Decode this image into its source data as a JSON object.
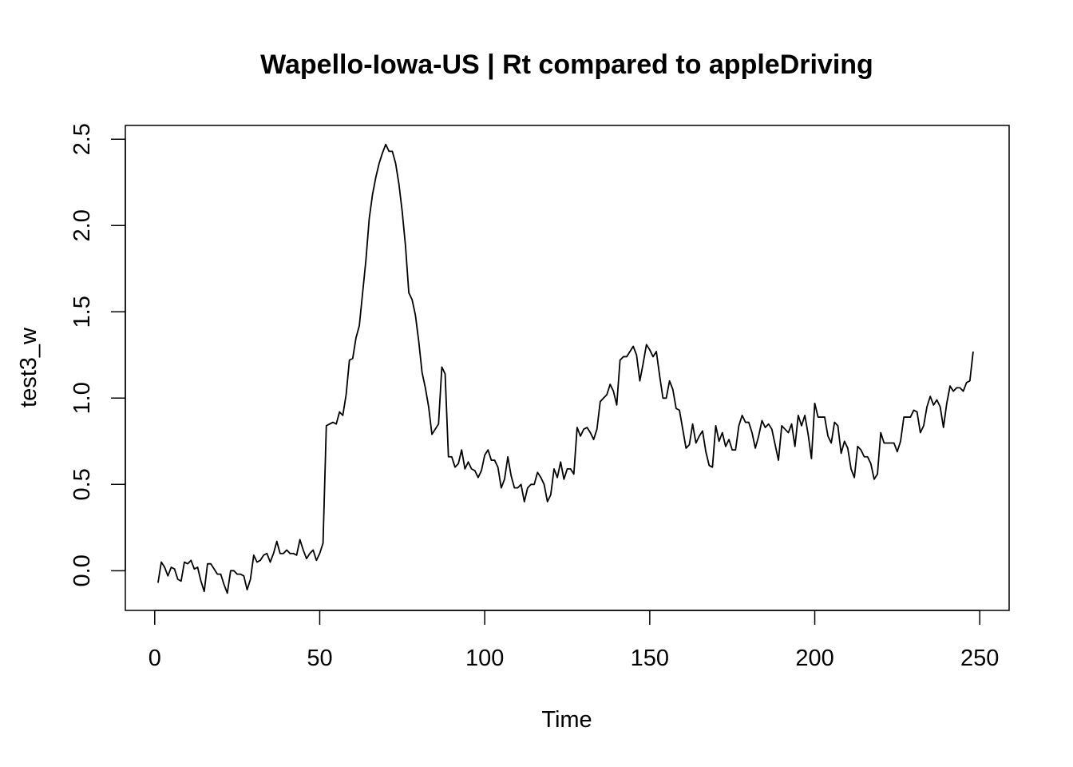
{
  "chart_data": {
    "type": "line",
    "title": "Wapello-Iowa-US | Rt compared to appleDriving",
    "xlabel": "Time",
    "ylabel": "test3_w",
    "xlim": [
      -8.9,
      258.9
    ],
    "ylim": [
      -0.23,
      2.58
    ],
    "xticks": [
      0,
      50,
      100,
      150,
      200,
      250
    ],
    "xtick_labels": [
      "0",
      "50",
      "100",
      "150",
      "200",
      "250"
    ],
    "yticks": [
      0,
      0.5,
      1,
      1.5,
      2,
      2.5
    ],
    "ytick_labels": [
      "0.0",
      "0.5",
      "1.0",
      "1.5",
      "2.0",
      "2.5"
    ],
    "grid": false,
    "legend": "none",
    "line_color": "#000000",
    "series": [
      {
        "x_start": 1,
        "values": [
          -0.07,
          0.05,
          0.02,
          -0.03,
          0.02,
          0.01,
          -0.05,
          -0.06,
          0.05,
          0.04,
          0.06,
          0.01,
          0.02,
          -0.06,
          -0.12,
          0.04,
          0.04,
          0.01,
          -0.02,
          -0.02,
          -0.08,
          -0.13,
          0.0,
          0.0,
          -0.02,
          -0.02,
          -0.03,
          -0.11,
          -0.05,
          0.09,
          0.05,
          0.06,
          0.09,
          0.1,
          0.05,
          0.1,
          0.17,
          0.1,
          0.1,
          0.12,
          0.1,
          0.1,
          0.09,
          0.18,
          0.12,
          0.07,
          0.1,
          0.12,
          0.06,
          0.1,
          0.16,
          0.84,
          0.85,
          0.86,
          0.85,
          0.92,
          0.9,
          1.02,
          1.22,
          1.23,
          1.35,
          1.42,
          1.61,
          1.8,
          2.04,
          2.18,
          2.28,
          2.36,
          2.42,
          2.47,
          2.43,
          2.43,
          2.36,
          2.24,
          2.08,
          1.88,
          1.61,
          1.57,
          1.48,
          1.33,
          1.15,
          1.06,
          0.95,
          0.79,
          0.82,
          0.85,
          1.18,
          1.14,
          0.66,
          0.66,
          0.6,
          0.62,
          0.7,
          0.59,
          0.63,
          0.59,
          0.58,
          0.54,
          0.58,
          0.67,
          0.7,
          0.64,
          0.64,
          0.6,
          0.48,
          0.53,
          0.66,
          0.55,
          0.48,
          0.48,
          0.5,
          0.4,
          0.48,
          0.5,
          0.5,
          0.57,
          0.54,
          0.5,
          0.4,
          0.44,
          0.59,
          0.54,
          0.63,
          0.53,
          0.59,
          0.59,
          0.56,
          0.83,
          0.78,
          0.82,
          0.83,
          0.8,
          0.76,
          0.82,
          0.98,
          1.0,
          1.02,
          1.08,
          1.04,
          0.96,
          1.22,
          1.24,
          1.24,
          1.27,
          1.3,
          1.25,
          1.1,
          1.2,
          1.31,
          1.28,
          1.24,
          1.27,
          1.13,
          1.0,
          1.0,
          1.1,
          1.05,
          0.94,
          0.93,
          0.82,
          0.71,
          0.73,
          0.85,
          0.74,
          0.78,
          0.81,
          0.69,
          0.61,
          0.6,
          0.84,
          0.75,
          0.8,
          0.72,
          0.76,
          0.7,
          0.7,
          0.84,
          0.9,
          0.86,
          0.86,
          0.8,
          0.71,
          0.78,
          0.87,
          0.83,
          0.85,
          0.82,
          0.73,
          0.64,
          0.84,
          0.82,
          0.8,
          0.85,
          0.72,
          0.9,
          0.84,
          0.9,
          0.79,
          0.65,
          0.97,
          0.89,
          0.89,
          0.89,
          0.78,
          0.74,
          0.86,
          0.84,
          0.68,
          0.75,
          0.71,
          0.59,
          0.54,
          0.72,
          0.7,
          0.66,
          0.66,
          0.62,
          0.53,
          0.56,
          0.8,
          0.74,
          0.74,
          0.74,
          0.74,
          0.69,
          0.75,
          0.89,
          0.89,
          0.89,
          0.93,
          0.92,
          0.8,
          0.84,
          0.95,
          1.01,
          0.96,
          0.99,
          0.95,
          0.83,
          0.97,
          1.07,
          1.04,
          1.06,
          1.06,
          1.04,
          1.09,
          1.1,
          1.27
        ]
      }
    ]
  }
}
